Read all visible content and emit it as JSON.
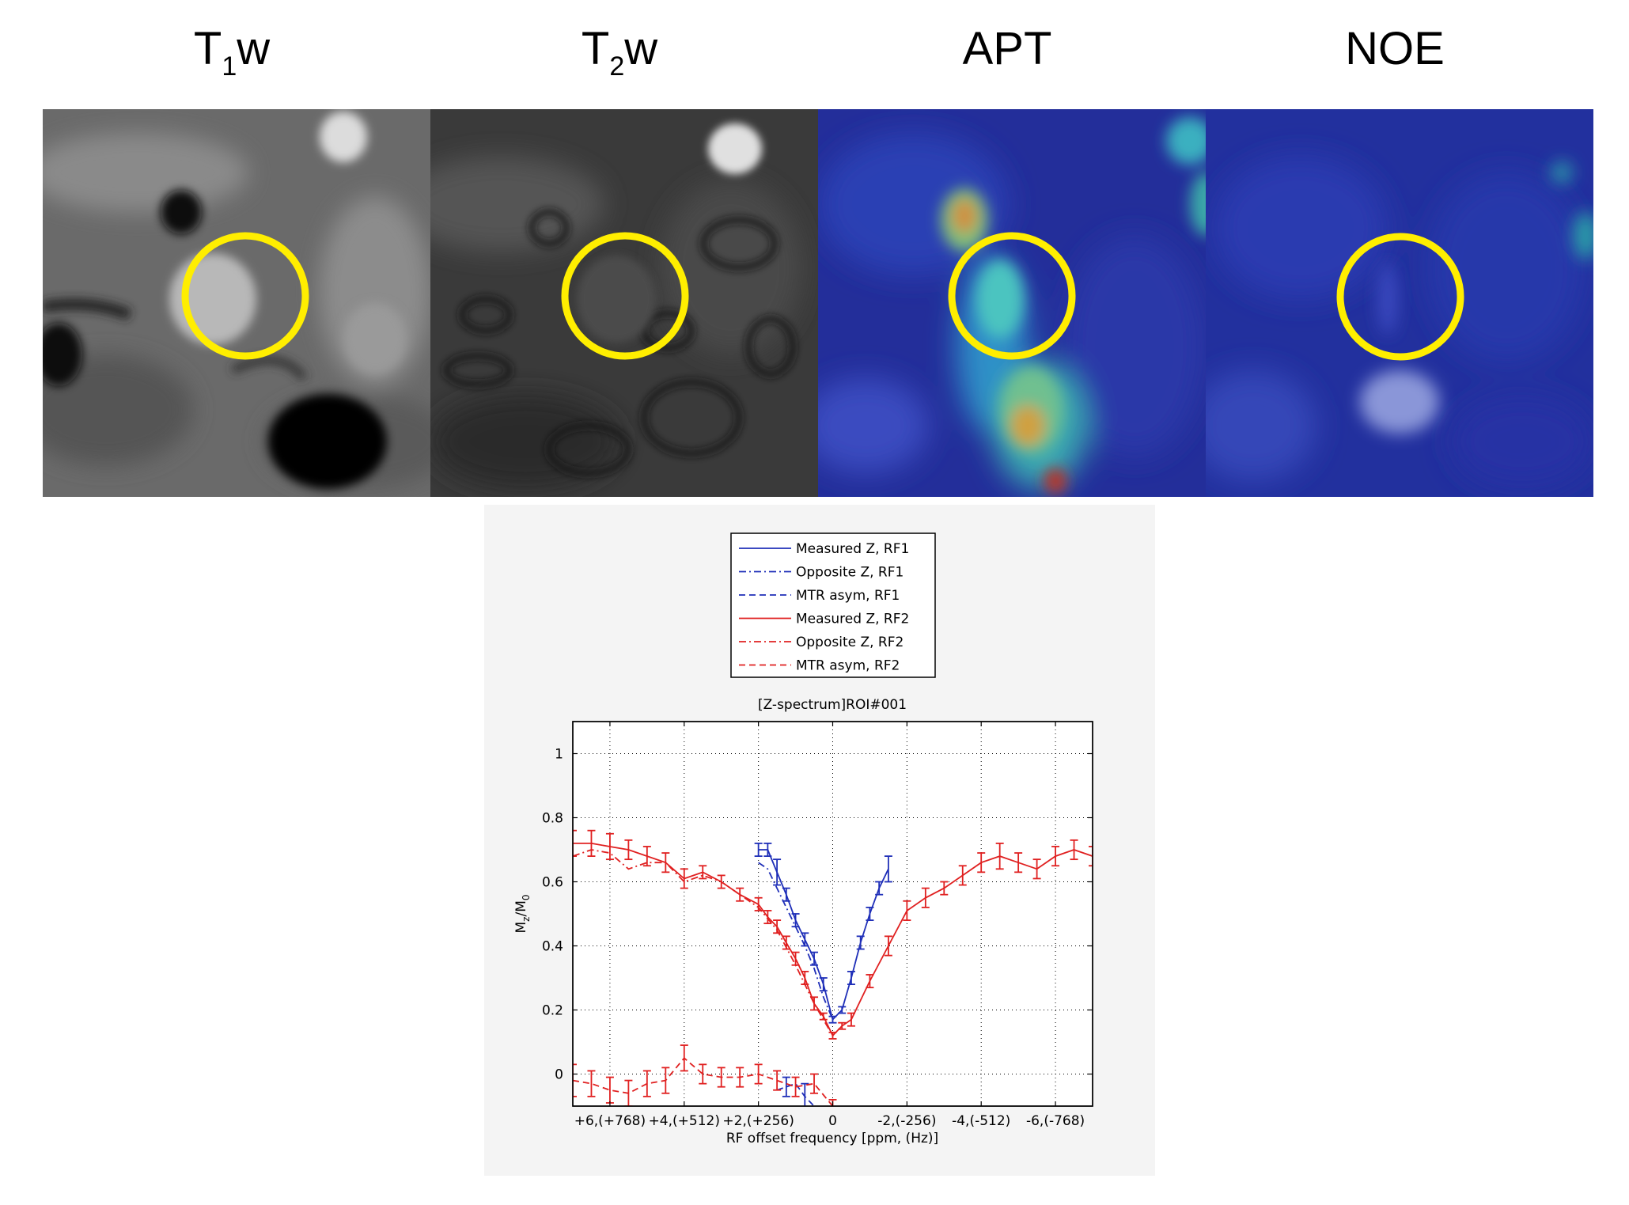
{
  "panels": [
    {
      "title_main": "T",
      "title_sub": "1",
      "title_suffix": "w",
      "type": "grayscale-bright"
    },
    {
      "title_main": "T",
      "title_sub": "2",
      "title_suffix": "w",
      "type": "grayscale-dark"
    },
    {
      "title_main": "APT",
      "title_sub": "",
      "title_suffix": "",
      "type": "apt-colormap"
    },
    {
      "title_main": "NOE",
      "title_sub": "",
      "title_suffix": "",
      "type": "noe-colormap"
    }
  ],
  "roi_color": "#ffee00",
  "chart_data": {
    "type": "line",
    "title": "[Z-spectrum]ROI#001",
    "xlabel": "RF offset frequency [ppm, (Hz)]",
    "ylabel": "M_z/M_0",
    "ylabel_main": "M",
    "ylabel_sub1": "z",
    "ylabel_mid": "/M",
    "ylabel_sub2": "0",
    "xlim": [
      7,
      -7
    ],
    "ylim": [
      -0.1,
      1.1
    ],
    "xticks": [
      6,
      4,
      2,
      0,
      -2,
      -4,
      -6
    ],
    "xtick_labels": [
      "+6,(+768)",
      "+4,(+512)",
      "+2,(+256)",
      "0",
      "-2,(-256)",
      "-4,(-512)",
      "-6,(-768)"
    ],
    "yticks": [
      0,
      0.2,
      0.4,
      0.6,
      0.8,
      1
    ],
    "ytick_labels": [
      "0",
      "0.2",
      "0.4",
      "0.6",
      "0.8",
      "1"
    ],
    "grid": true,
    "legend": {
      "placement": "top-center",
      "entries": [
        {
          "label": "Measured Z, RF1",
          "color": "#1f2fb8",
          "dash": "solid"
        },
        {
          "label": "Opposite Z, RF1",
          "color": "#1f2fb8",
          "dash": "dashdot"
        },
        {
          "label": "MTR asym, RF1",
          "color": "#1f2fb8",
          "dash": "dashed"
        },
        {
          "label": "Measured Z, RF2",
          "color": "#e02020",
          "dash": "solid"
        },
        {
          "label": "Opposite Z, RF2",
          "color": "#e02020",
          "dash": "dashdot"
        },
        {
          "label": "MTR asym, RF2",
          "color": "#e02020",
          "dash": "dashed"
        }
      ]
    },
    "series": [
      {
        "name": "Measured Z, RF1",
        "color": "#1f2fb8",
        "dash": "solid",
        "x": [
          2,
          1.75,
          1.5,
          1.25,
          1,
          0.75,
          0.5,
          0.25,
          0,
          -0.25,
          -0.5,
          -0.75,
          -1,
          -1.25,
          -1.5
        ],
        "y": [
          0.7,
          0.7,
          0.63,
          0.56,
          0.48,
          0.42,
          0.36,
          0.28,
          0.17,
          0.2,
          0.3,
          0.41,
          0.5,
          0.58,
          0.64
        ],
        "err": [
          0.02,
          0.02,
          0.04,
          0.02,
          0.02,
          0.02,
          0.02,
          0.02,
          0.01,
          0.01,
          0.02,
          0.02,
          0.02,
          0.02,
          0.04
        ]
      },
      {
        "name": "Opposite Z, RF1",
        "color": "#1f2fb8",
        "dash": "dashdot",
        "x": [
          2,
          1.75,
          1.5,
          1.25,
          1,
          0.75,
          0.5,
          0.25,
          0
        ],
        "y": [
          0.66,
          0.64,
          0.58,
          0.52,
          0.46,
          0.4,
          0.33,
          0.24,
          0.17
        ],
        "err": [
          0,
          0,
          0,
          0,
          0,
          0,
          0,
          0,
          0
        ]
      },
      {
        "name": "MTR asym, RF1",
        "color": "#1f2fb8",
        "dash": "dashed",
        "x": [
          1.5,
          1.25,
          1,
          0.75,
          0.5
        ],
        "y": [
          -0.05,
          -0.04,
          -0.03,
          -0.07,
          -0.1
        ],
        "err": [
          0,
          0.03,
          0,
          0.04,
          0
        ]
      },
      {
        "name": "Measured Z, RF2",
        "color": "#e02020",
        "dash": "solid",
        "x": [
          7,
          6.5,
          6,
          5.5,
          5,
          4.5,
          4,
          3.5,
          3,
          2.5,
          2,
          1.75,
          1.5,
          1.25,
          1,
          0.75,
          0.5,
          0.25,
          0,
          -0.25,
          -0.5,
          -1,
          -1.5,
          -2,
          -2.5,
          -3,
          -3.5,
          -4,
          -4.5,
          -5,
          -5.5,
          -6,
          -6.5,
          -7
        ],
        "y": [
          0.72,
          0.72,
          0.71,
          0.7,
          0.68,
          0.66,
          0.61,
          0.63,
          0.6,
          0.56,
          0.53,
          0.49,
          0.46,
          0.41,
          0.36,
          0.3,
          0.22,
          0.18,
          0.12,
          0.15,
          0.17,
          0.29,
          0.4,
          0.51,
          0.55,
          0.58,
          0.62,
          0.66,
          0.68,
          0.66,
          0.64,
          0.68,
          0.7,
          0.68
        ],
        "err": [
          0.04,
          0.04,
          0.04,
          0.03,
          0.03,
          0.03,
          0.03,
          0.02,
          0.02,
          0.02,
          0.02,
          0.02,
          0.02,
          0.02,
          0.02,
          0.02,
          0.02,
          0.01,
          0.01,
          0.01,
          0.02,
          0.02,
          0.03,
          0.03,
          0.03,
          0.02,
          0.03,
          0.03,
          0.04,
          0.03,
          0.03,
          0.03,
          0.03,
          0.03
        ]
      },
      {
        "name": "Opposite Z, RF2",
        "color": "#e02020",
        "dash": "dashdot",
        "x": [
          7,
          6.5,
          6,
          5.5,
          5,
          4.5,
          4,
          3.5,
          3,
          2.5,
          2,
          1.5,
          1,
          0.5,
          0
        ],
        "y": [
          0.68,
          0.7,
          0.69,
          0.64,
          0.66,
          0.66,
          0.6,
          0.62,
          0.6,
          0.56,
          0.52,
          0.45,
          0.34,
          0.22,
          0.12
        ],
        "err": [
          0,
          0,
          0,
          0,
          0,
          0,
          0,
          0,
          0,
          0,
          0,
          0,
          0,
          0,
          0
        ]
      },
      {
        "name": "MTR asym, RF2",
        "color": "#e02020",
        "dash": "dashed",
        "x": [
          7,
          6.5,
          6,
          5.5,
          5,
          4.5,
          4,
          3.5,
          3,
          2.5,
          2,
          1.5,
          1,
          0.5,
          0
        ],
        "y": [
          -0.02,
          -0.03,
          -0.05,
          -0.06,
          -0.03,
          -0.02,
          0.05,
          0.0,
          -0.01,
          -0.01,
          0.0,
          -0.02,
          -0.04,
          -0.03,
          -0.1
        ],
        "err": [
          0.05,
          0.04,
          0.04,
          0.04,
          0.04,
          0.04,
          0.04,
          0.03,
          0.03,
          0.03,
          0.03,
          0.03,
          0.03,
          0.03,
          0.02
        ]
      }
    ]
  }
}
